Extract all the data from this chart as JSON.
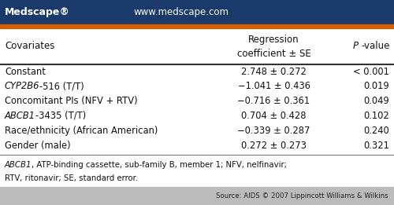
{
  "header_bg": "#1a3a6b",
  "header_text_left": "Medscape®",
  "header_text_center": "www.medscape.com",
  "header_text_color": "#ffffff",
  "orange_bar_color": "#d45f00",
  "col1_header": "Covariates",
  "col2_header_line1": "Regression",
  "col2_header_line2": "coefficient ± SE",
  "col3_header": "P-value",
  "rows": [
    {
      "col1": "Constant",
      "col1_italic": false,
      "col1_italic_part": "",
      "col1_normal_part": "",
      "col2": "2.748 ± 0.272",
      "col3": "< 0.001"
    },
    {
      "col1": "",
      "col1_italic": true,
      "col1_italic_part": "CYP2B6",
      "col1_normal_part": "-516 (T/T)",
      "col2": "−1.041 ± 0.436",
      "col3": "0.019"
    },
    {
      "col1": "Concomitant PIs (NFV + RTV)",
      "col1_italic": false,
      "col1_italic_part": "",
      "col1_normal_part": "",
      "col2": "−0.716 ± 0.361",
      "col3": "0.049"
    },
    {
      "col1": "",
      "col1_italic": true,
      "col1_italic_part": "ABCB1",
      "col1_normal_part": "-3435 (T/T)",
      "col2": "0.704 ± 0.428",
      "col3": "0.102"
    },
    {
      "col1": "Race/ethnicity (African American)",
      "col1_italic": false,
      "col1_italic_part": "",
      "col1_normal_part": "",
      "col2": "−0.339 ± 0.287",
      "col3": "0.240"
    },
    {
      "col1": "Gender (male)",
      "col1_italic": false,
      "col1_italic_part": "",
      "col1_normal_part": "",
      "col2": "0.272 ± 0.273",
      "col3": "0.321"
    }
  ],
  "footnote_line1_italic": "ABCB1",
  "footnote_line1_rest": ", ATP-binding cassette, sub-family B, member 1; NFV, nelfinavir;",
  "footnote_line2": "RTV, ritonavir; SE, standard error.",
  "source_text": "Source: AIDS © 2007 Lippincott Williams & Wilkins",
  "source_bg": "#bbbbbb",
  "bg_color": "#ffffff",
  "table_text_color": "#111111",
  "fig_width": 5.0,
  "fig_height": 2.61,
  "dpi": 100
}
